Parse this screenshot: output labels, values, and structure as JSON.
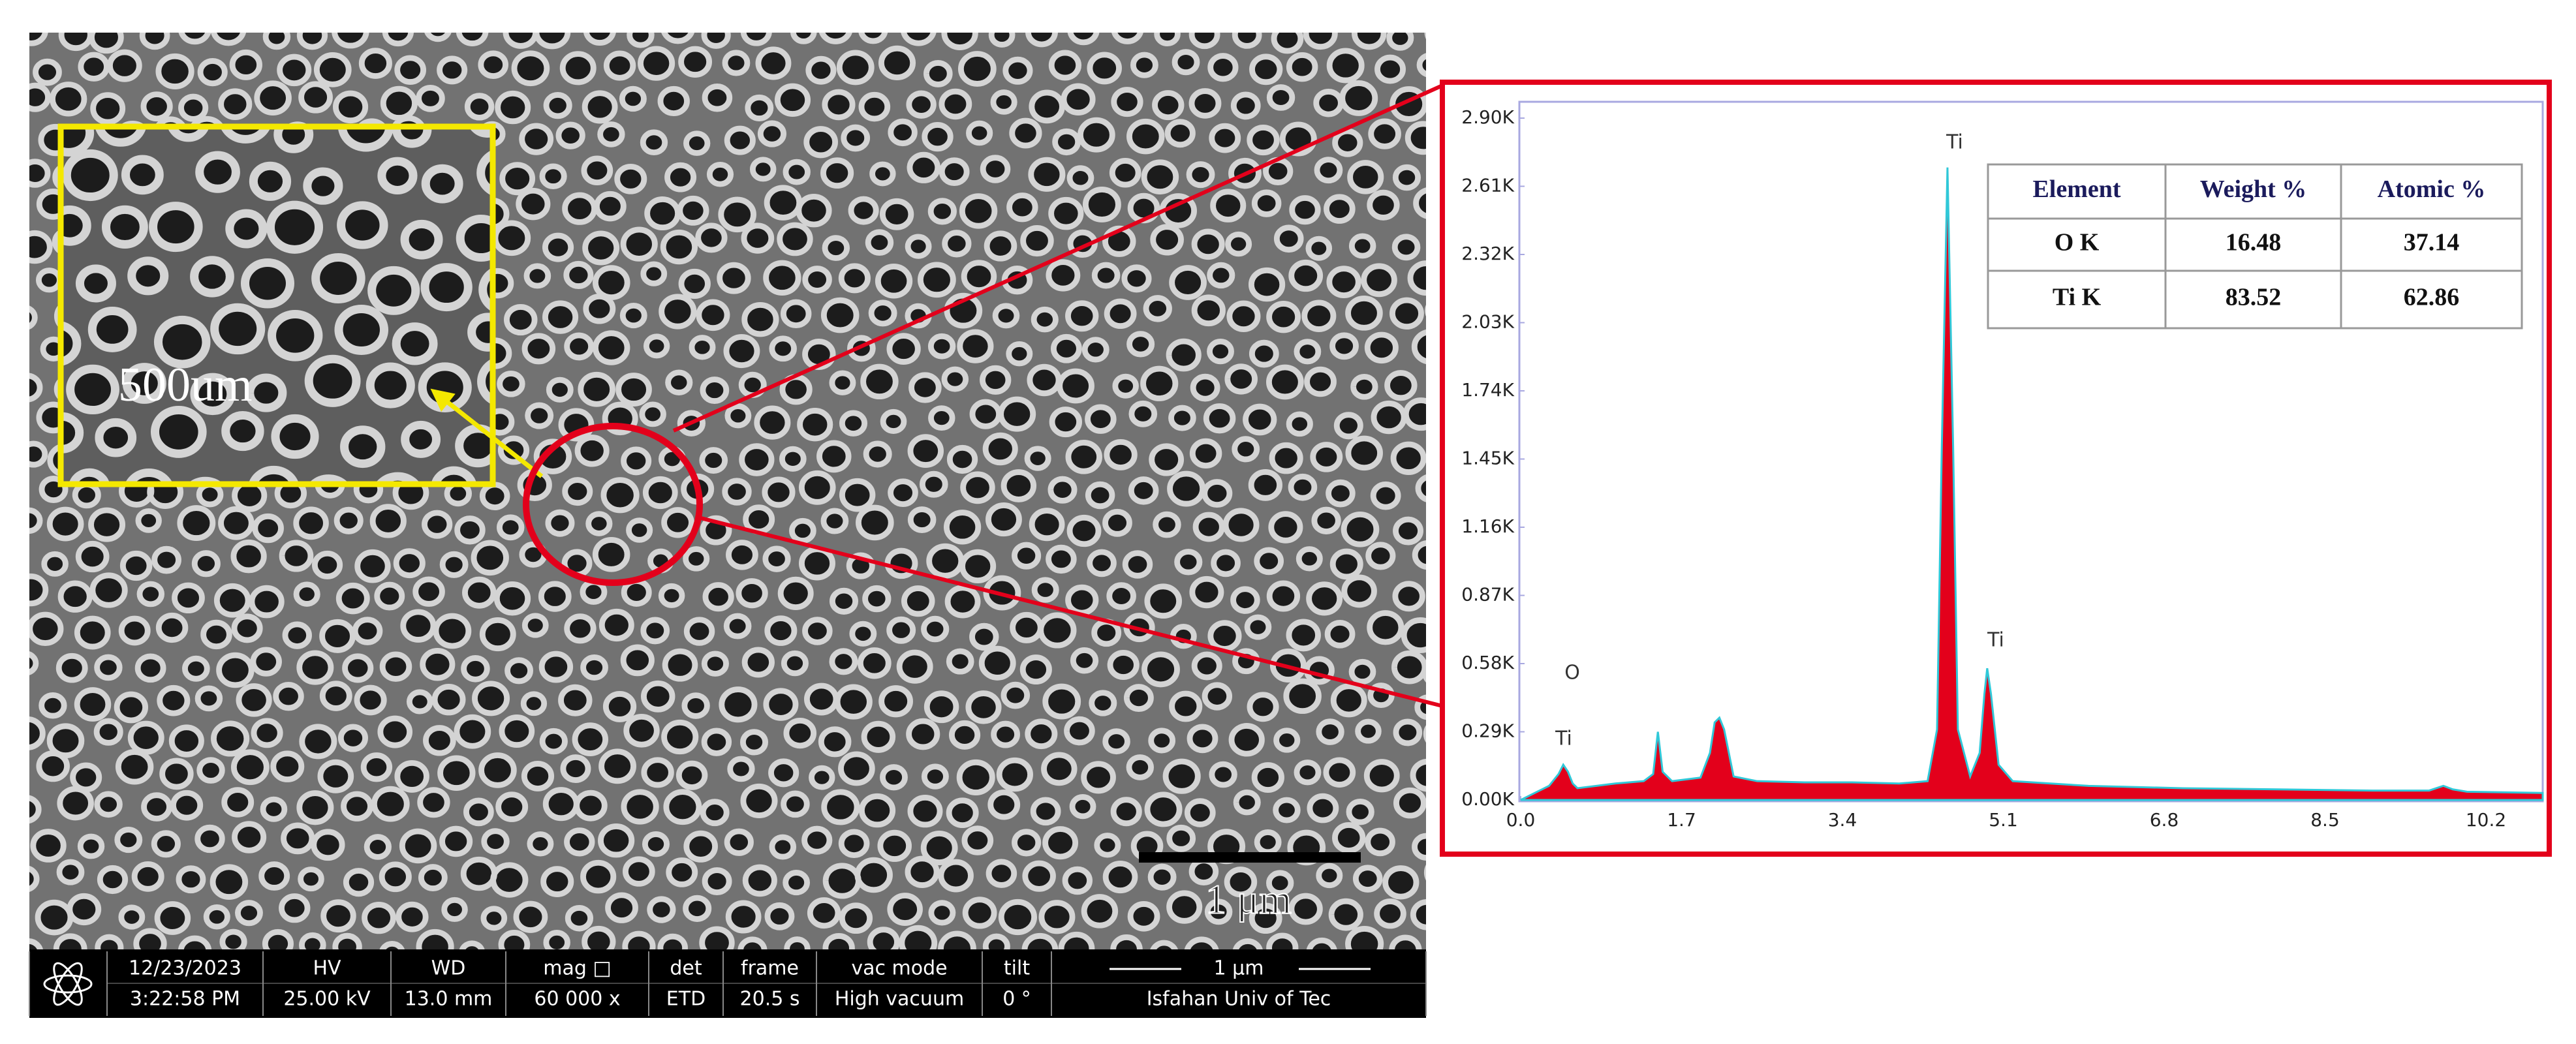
{
  "chart_data": {
    "type": "area",
    "x": [
      0.0,
      0.2,
      0.3,
      0.4,
      0.45,
      0.5,
      0.55,
      0.6,
      0.8,
      1.0,
      1.3,
      1.4,
      1.45,
      1.5,
      1.6,
      1.9,
      2.0,
      2.05,
      2.1,
      2.15,
      2.25,
      2.5,
      3.0,
      3.5,
      4.0,
      4.3,
      4.4,
      4.45,
      4.51,
      4.57,
      4.62,
      4.75,
      4.85,
      4.9,
      4.93,
      4.97,
      5.05,
      5.2,
      6.0,
      7.0,
      8.0,
      9.0,
      9.6,
      9.75,
      9.85,
      10.0,
      10.8
    ],
    "values": [
      0,
      40,
      60,
      110,
      150,
      120,
      70,
      50,
      60,
      70,
      80,
      110,
      290,
      120,
      80,
      95,
      200,
      330,
      350,
      300,
      100,
      80,
      75,
      75,
      70,
      80,
      300,
      1500,
      2690,
      1500,
      300,
      100,
      200,
      450,
      560,
      450,
      150,
      80,
      60,
      50,
      45,
      40,
      40,
      60,
      45,
      35,
      30
    ],
    "color": "#e3001b",
    "line_color": "#30c8d8",
    "xlim": [
      0,
      10.8
    ],
    "xticks": [
      {
        "value": 0,
        "label": "0.0"
      },
      1.7,
      3.4,
      5.1,
      6.8,
      8.5,
      10.2
    ],
    "ylim": [
      0,
      2900
    ],
    "yticks": [
      {
        "value": 0,
        "label": "0.00K"
      },
      {
        "value": 290,
        "label": "0.29K"
      },
      {
        "value": 580,
        "label": "0.58K"
      },
      {
        "value": 870,
        "label": "0.87K"
      },
      {
        "value": 1160,
        "label": "1.16K"
      },
      {
        "value": 1450,
        "label": "1.45K"
      },
      {
        "value": 1740,
        "label": "1.74K"
      },
      {
        "value": 2030,
        "label": "2.03K"
      },
      {
        "value": 2320,
        "label": "2.32K"
      },
      {
        "value": 2610,
        "label": "2.61K"
      },
      {
        "value": 2900,
        "label": "2.90K"
      }
    ],
    "annotations": [
      "Ti",
      "Ti",
      "O",
      "Ti"
    ],
    "table": {
      "columns": [
        "Element",
        "Weight %",
        "Atomic %"
      ],
      "rows": [
        [
          "O K",
          16.48,
          37.14
        ],
        [
          "Ti K",
          83.52,
          62.86
        ]
      ]
    }
  },
  "sem_image": {
    "inset_label": "500um",
    "scale_bar_label": "1 μm",
    "info_bar": {
      "fields": [
        [
          "12/23/2023",
          "3:22:58 PM"
        ],
        [
          "HV",
          "25.00 kV"
        ],
        [
          "WD",
          "13.0 mm"
        ],
        [
          "mag □",
          "60 000 x"
        ],
        [
          "det",
          "ETD"
        ],
        [
          "frame",
          "20.5 s"
        ],
        [
          "vac mode",
          "High vacuum"
        ],
        [
          "tilt",
          "0 °"
        ]
      ],
      "scale_label": "1 μm",
      "institution": "Isfahan Univ of Tec"
    }
  }
}
